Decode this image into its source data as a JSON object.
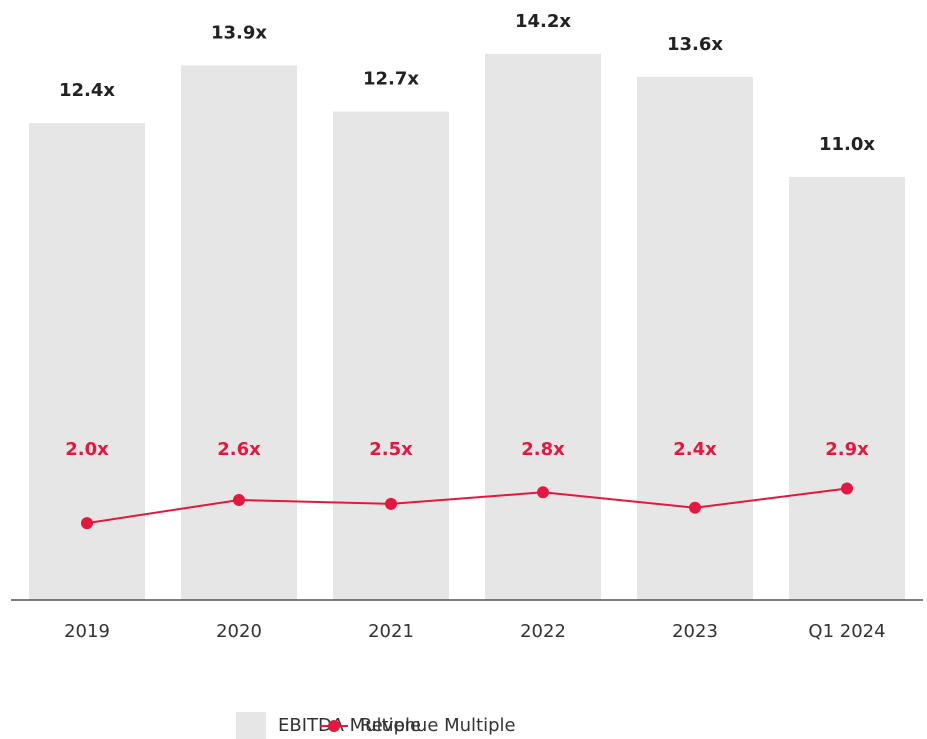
{
  "chart_data": {
    "type": "bar",
    "categories": [
      "2019",
      "2020",
      "2021",
      "2022",
      "2023",
      "Q1 2024"
    ],
    "ylim": [
      0,
      15.6
    ],
    "series": [
      {
        "name": "EBITDA Multiple",
        "type": "bar",
        "color": "#e6e6e6",
        "values": [
          12.4,
          13.9,
          12.7,
          14.2,
          13.6,
          11.0
        ],
        "value_labels": [
          "12.4x",
          "13.9x",
          "12.7x",
          "14.2x",
          "13.6x",
          "11.0x"
        ]
      },
      {
        "name": "Revenue Multiple",
        "type": "line",
        "color": "#e4173e",
        "values": [
          2.0,
          2.6,
          2.5,
          2.8,
          2.4,
          2.9
        ],
        "value_labels": [
          "2.0x",
          "2.6x",
          "2.5x",
          "2.8x",
          "2.4x",
          "2.9x"
        ]
      }
    ],
    "legend": "bottom"
  }
}
